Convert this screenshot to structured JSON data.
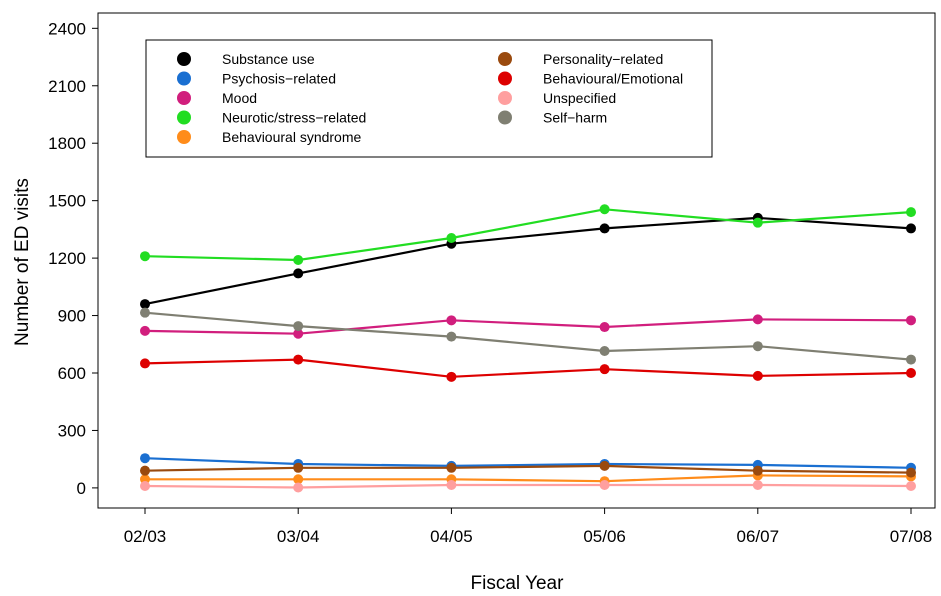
{
  "chart_data": {
    "type": "line",
    "title": "",
    "xlabel": "Fiscal Year",
    "ylabel": "Number of ED visits",
    "categories": [
      "02/03",
      "03/04",
      "04/05",
      "05/06",
      "06/07",
      "07/08"
    ],
    "yticks": [
      0,
      300,
      600,
      900,
      1200,
      1500,
      1800,
      2100,
      2400
    ],
    "ylim": [
      -105,
      2480
    ],
    "grid": false,
    "legend_position": "top-left",
    "series": [
      {
        "name": "Substance use",
        "color": "#000000",
        "values": [
          960,
          1120,
          1275,
          1355,
          1410,
          1355
        ]
      },
      {
        "name": "Psychosis−related",
        "color": "#1a6fd1",
        "values": [
          155,
          125,
          115,
          125,
          120,
          105
        ]
      },
      {
        "name": "Mood",
        "color": "#d11e7d",
        "values": [
          820,
          805,
          875,
          840,
          880,
          875
        ]
      },
      {
        "name": "Neurotic/stress−related",
        "color": "#22dd22",
        "values": [
          1210,
          1190,
          1305,
          1455,
          1385,
          1440
        ]
      },
      {
        "name": "Behavioural syndrome",
        "color": "#ff8c1a",
        "values": [
          45,
          45,
          45,
          35,
          65,
          60
        ]
      },
      {
        "name": "Personality−related",
        "color": "#9a4a0e",
        "values": [
          90,
          105,
          105,
          115,
          90,
          80
        ]
      },
      {
        "name": "Behavioural/Emotional",
        "color": "#dd0000",
        "values": [
          650,
          670,
          580,
          620,
          585,
          600
        ]
      },
      {
        "name": "Unspecified",
        "color": "#ff9f9f",
        "values": [
          10,
          2,
          15,
          15,
          15,
          10
        ]
      },
      {
        "name": "Self−harm",
        "color": "#7f7f72",
        "values": [
          915,
          845,
          790,
          715,
          740,
          670
        ]
      }
    ]
  }
}
